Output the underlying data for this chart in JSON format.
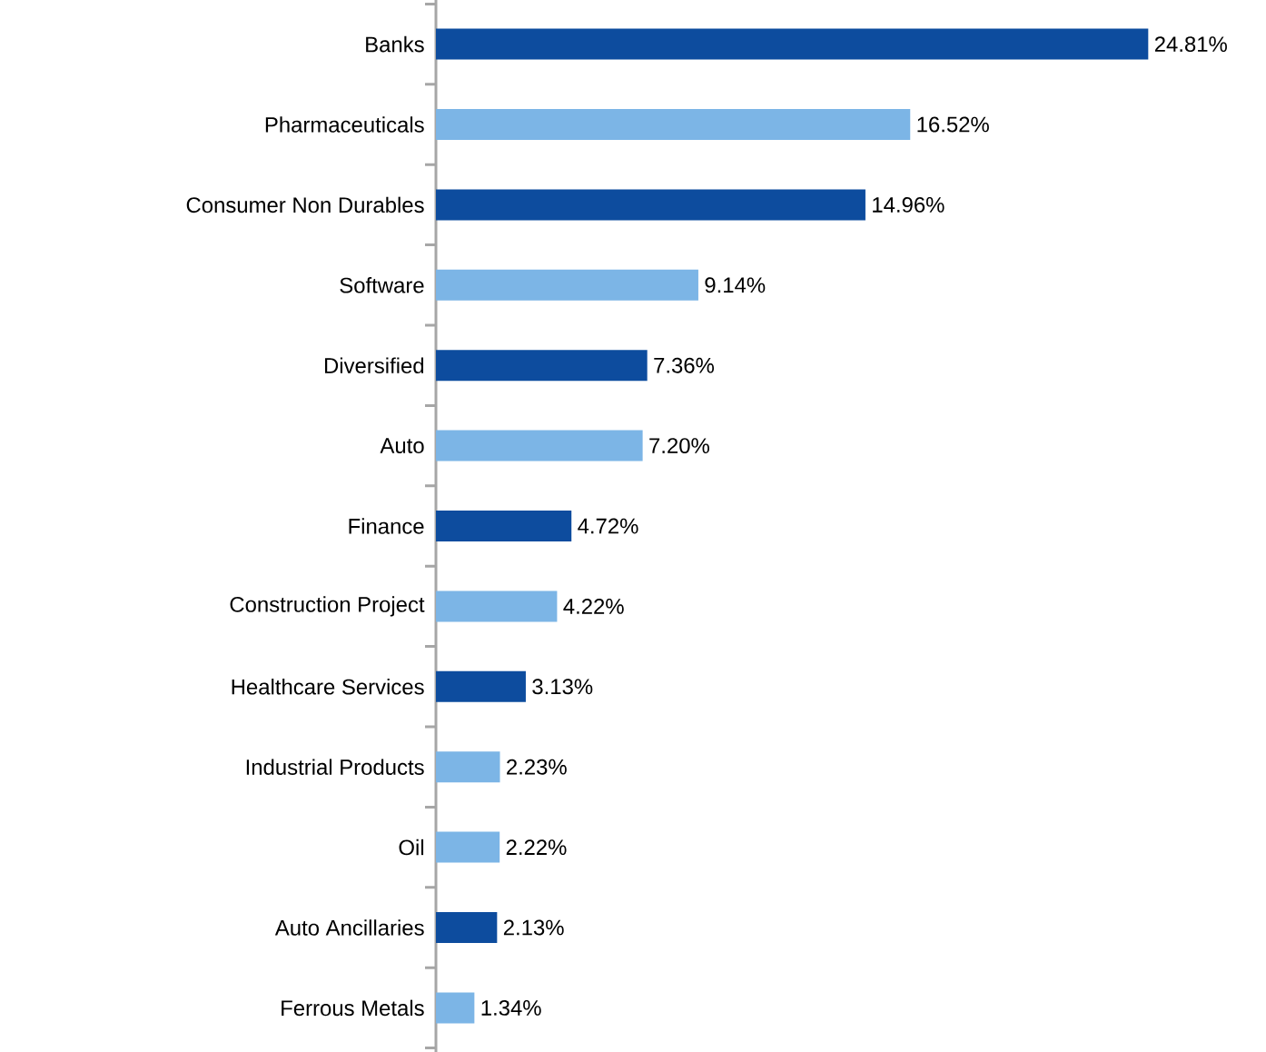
{
  "chart_data": {
    "type": "bar",
    "orientation": "horizontal",
    "categories": [
      "Banks",
      "Pharmaceuticals",
      "Consumer Non Durables",
      "Software",
      "Diversified",
      "Auto",
      "Finance",
      "Construction Project",
      "Healthcare Services",
      "Industrial Products",
      "Oil",
      "Auto Ancillaries",
      "Ferrous Metals"
    ],
    "values": [
      24.81,
      16.52,
      14.96,
      9.14,
      7.36,
      7.2,
      4.72,
      4.22,
      3.13,
      2.23,
      2.22,
      2.13,
      1.34
    ],
    "value_labels": [
      "24.81%",
      "16.52%",
      "14.96%",
      "9.14%",
      "7.36%",
      "7.20%",
      "4.72%",
      "4.22%",
      "3.13%",
      "2.23%",
      "2.22%",
      "2.13%",
      "1.34%"
    ],
    "colors": [
      "#0d4c9e",
      "#7cb5e6",
      "#0d4c9e",
      "#7cb5e6",
      "#0d4c9e",
      "#7cb5e6",
      "#0d4c9e",
      "#7cb5e6",
      "#0d4c9e",
      "#7cb5e6",
      "#7cb5e6",
      "#0d4c9e",
      "#7cb5e6"
    ]
  }
}
